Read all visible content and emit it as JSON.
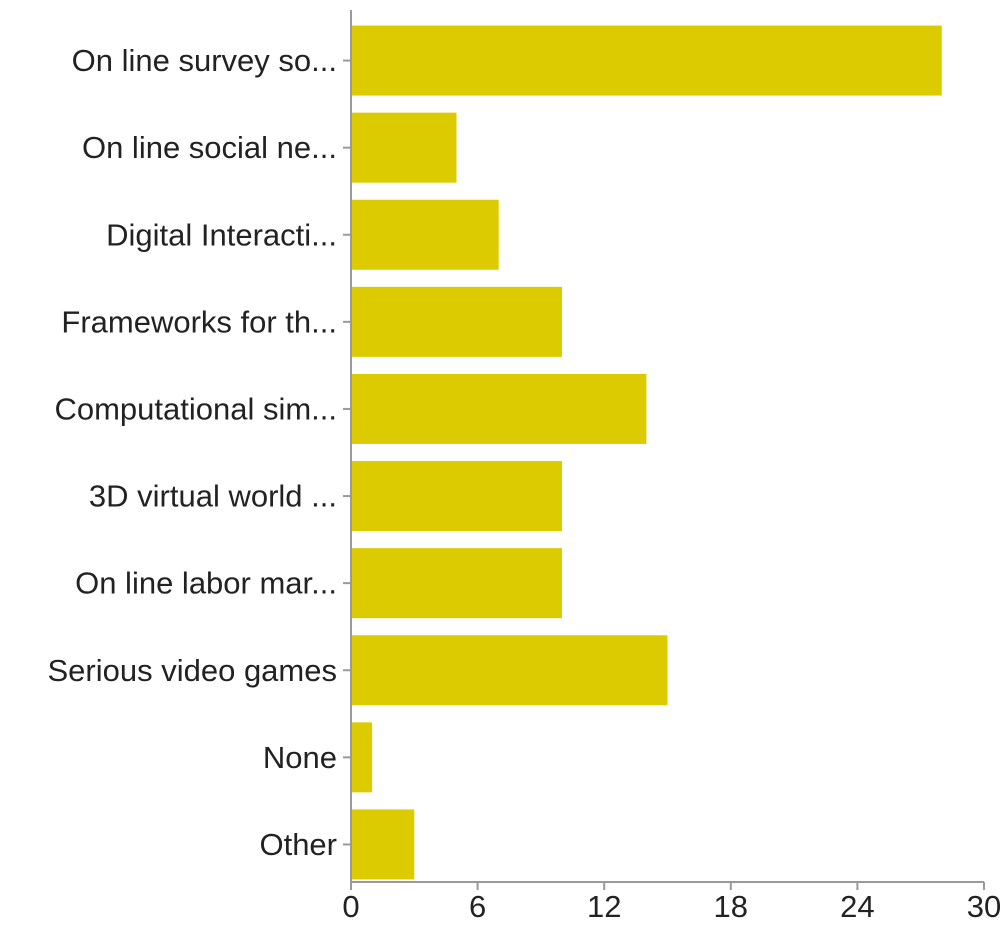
{
  "chart_data": {
    "type": "bar",
    "orientation": "horizontal",
    "title": "",
    "xlabel": "",
    "ylabel": "",
    "categories": [
      "On line survey so...",
      "On line social ne...",
      "Digital Interacti...",
      "Frameworks for th...",
      "Computational sim...",
      "3D virtual world ...",
      "On line labor mar...",
      "Serious video games",
      "None",
      "Other"
    ],
    "values": [
      28,
      5,
      7,
      10,
      14,
      10,
      10,
      15,
      1,
      3
    ],
    "xlim": [
      0,
      30
    ],
    "xticks": [
      "0",
      "6",
      "12",
      "18",
      "24",
      "30"
    ],
    "bar_color": "#dccb00",
    "grid": false,
    "legend": "none"
  }
}
